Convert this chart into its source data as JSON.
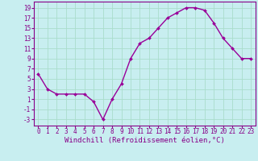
{
  "x": [
    0,
    1,
    2,
    3,
    4,
    5,
    6,
    7,
    8,
    9,
    10,
    11,
    12,
    13,
    14,
    15,
    16,
    17,
    18,
    19,
    20,
    21,
    22,
    23
  ],
  "y": [
    6,
    3,
    2,
    2,
    2,
    2,
    0.5,
    -3,
    1,
    4,
    9,
    12,
    13,
    15,
    17,
    18,
    19,
    19,
    18.5,
    16,
    13,
    11,
    9,
    9
  ],
  "line_color": "#990099",
  "marker": "D",
  "marker_size": 2.0,
  "bg_color": "#c8eef0",
  "grid_color": "#aaddcc",
  "xlabel": "Windchill (Refroidissement éolien,°C)",
  "xlabel_fontsize": 6.5,
  "ytick_labels": [
    "-3",
    "-1",
    "1",
    "3",
    "5",
    "7",
    "9",
    "11",
    "13",
    "15",
    "17",
    "19"
  ],
  "ytick_values": [
    -3,
    -1,
    1,
    3,
    5,
    7,
    9,
    11,
    13,
    15,
    17,
    19
  ],
  "ylim": [
    -4.2,
    20.2
  ],
  "xlim": [
    -0.5,
    23.5
  ],
  "xtick_labels": [
    "0",
    "1",
    "2",
    "3",
    "4",
    "5",
    "6",
    "7",
    "8",
    "9",
    "10",
    "11",
    "12",
    "13",
    "14",
    "15",
    "16",
    "17",
    "18",
    "19",
    "20",
    "21",
    "22",
    "23"
  ],
  "xtick_values": [
    0,
    1,
    2,
    3,
    4,
    5,
    6,
    7,
    8,
    9,
    10,
    11,
    12,
    13,
    14,
    15,
    16,
    17,
    18,
    19,
    20,
    21,
    22,
    23
  ],
  "tick_fontsize": 5.5,
  "line_width": 1.0,
  "spine_color": "#880088",
  "text_color": "#880088"
}
